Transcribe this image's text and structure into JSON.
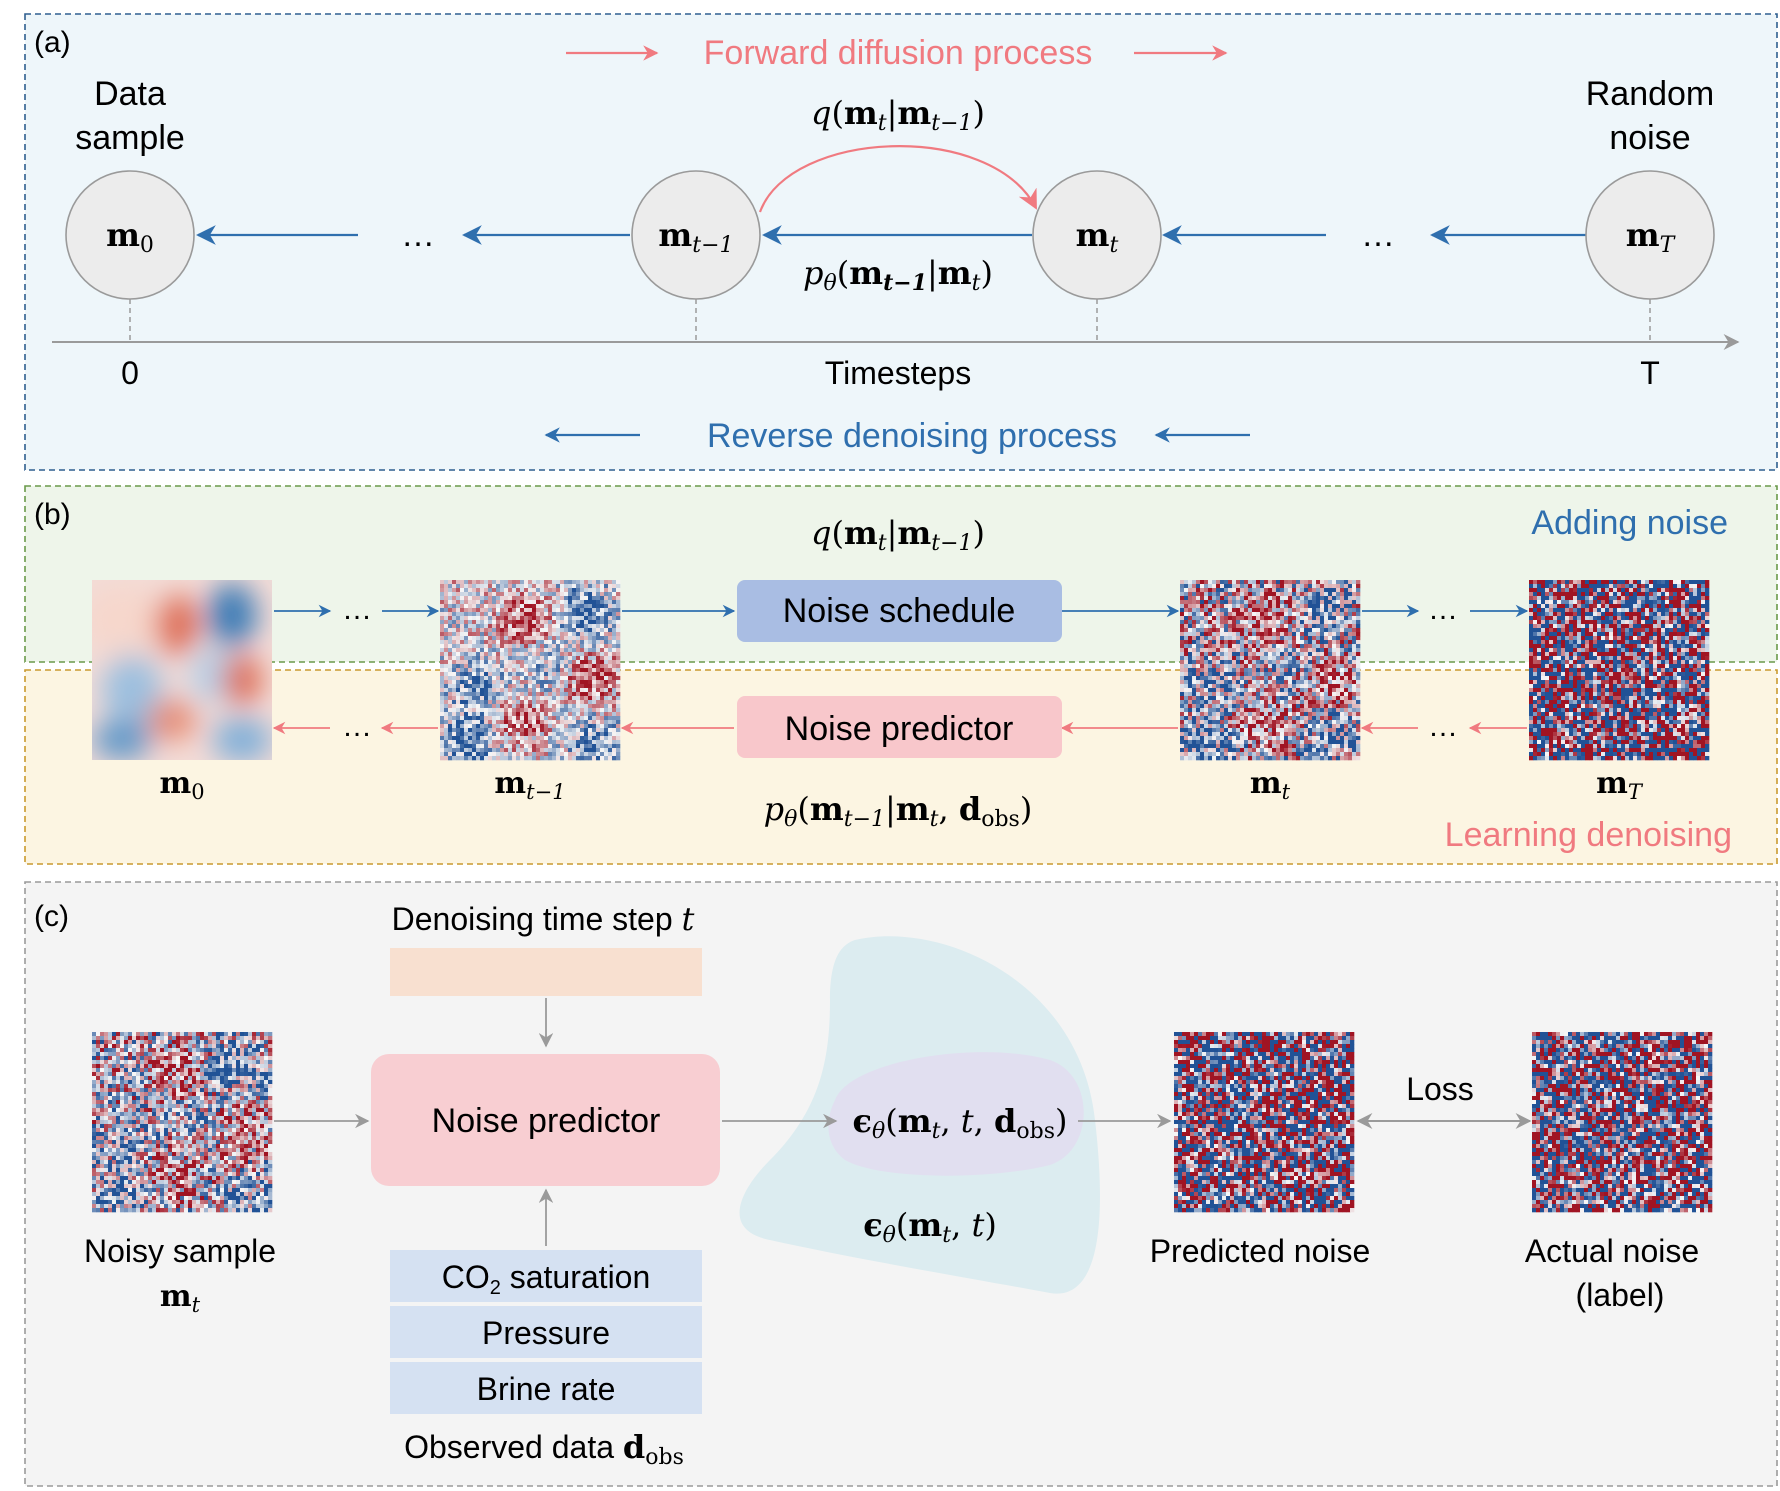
{
  "colors": {
    "panel_a_bg": "#eef6fa",
    "panel_a_border": "#2f5f8f",
    "panel_b_top_bg": "#eef5ea",
    "panel_b_top_border": "#6a9a4a",
    "panel_b_bottom_bg": "#fcf5e2",
    "panel_b_bottom_border": "#c99a2e",
    "panel_c_bg": "#f4f4f4",
    "panel_c_border": "#9a9a9a",
    "forward_red": "#f07a80",
    "reverse_blue": "#2f6fae",
    "noise_schedule_fill": "#a9bde3",
    "noise_predictor_fill": "#f8c7cb",
    "timestep_box_fill": "#f8e0d0",
    "observed_box_fill": "#d5e1f2",
    "epsilon_outer_fill": "#dcecf0",
    "epsilon_inner_fill": "#e1dff0",
    "node_fill": "#ececec"
  },
  "panel_a": {
    "label": "(a)",
    "forward_process": "Forward diffusion process",
    "reverse_process": "Reverse denoising process",
    "data_sample": [
      "Data",
      "sample"
    ],
    "random_noise": [
      "Random",
      "noise"
    ],
    "ellipsis": "…",
    "axis_label": "Timesteps",
    "axis_start": "0",
    "axis_end": "T",
    "forward_formula": "q(m_t | m_{t−1})",
    "reverse_formula": "p_θ(m_{t−1} | m_t)",
    "nodes": [
      "m_0",
      "m_{t−1}",
      "m_t",
      "m_T"
    ]
  },
  "panel_b": {
    "label": "(b)",
    "adding_noise": "Adding noise",
    "learning_denoising": "Learning denoising",
    "noise_schedule": "Noise schedule",
    "noise_predictor": "Noise predictor",
    "ellipsis": "…",
    "forward_formula": "q(m_t | m_{t−1})",
    "reverse_formula": "p_θ(m_{t−1} | m_t, d_obs)",
    "image_labels": [
      "m_0",
      "m_{t−1}",
      "m_t",
      "m_T"
    ]
  },
  "panel_c": {
    "label": "(c)",
    "timestep_title": "Denoising time step t",
    "noise_predictor": "Noise predictor",
    "noisy_sample": "Noisy sample",
    "noisy_sample_symbol": "m_t",
    "observed": [
      "CO2 saturation",
      "Pressure",
      "Brine rate"
    ],
    "observed_title": "Observed data d_obs",
    "eps_conditional": "ϵ_θ(m_t, t, d_obs)",
    "eps_unconditional": "ϵ_θ(m_t, t)",
    "loss": "Loss",
    "predicted_noise": "Predicted noise",
    "actual_noise": [
      "Actual noise",
      "(label)"
    ]
  }
}
